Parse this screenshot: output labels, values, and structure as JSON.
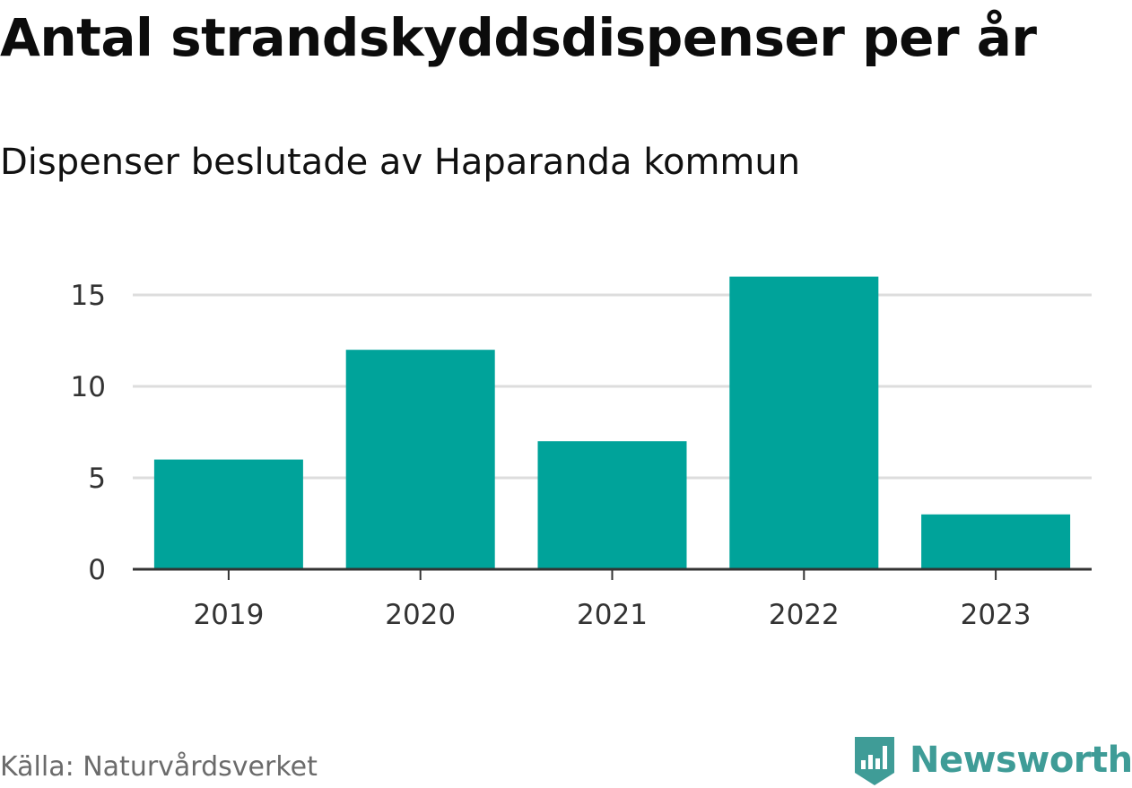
{
  "header": {
    "title": "Antal strandskyddsdispenser per år",
    "subtitle": "Dispenser beslutade av Haparanda kommun"
  },
  "footer": {
    "source": "Källa: Naturvårdsverket",
    "brand": "Newsworthy",
    "logo_icon": "newsworthy-logo-icon"
  },
  "colors": {
    "bar": "#00a39a",
    "grid": "#dddddd",
    "axis": "#333333",
    "brand": "#3f9c97"
  },
  "chart_data": {
    "type": "bar",
    "title": "Antal strandskyddsdispenser per år",
    "subtitle": "Dispenser beslutade av Haparanda kommun",
    "categories": [
      "2019",
      "2020",
      "2021",
      "2022",
      "2023"
    ],
    "values": [
      6,
      12,
      7,
      16,
      3
    ],
    "xlabel": "",
    "ylabel": "",
    "ylim": [
      0,
      16
    ],
    "yticks": [
      0,
      5,
      10,
      15
    ],
    "grid": true,
    "legend": "none"
  }
}
